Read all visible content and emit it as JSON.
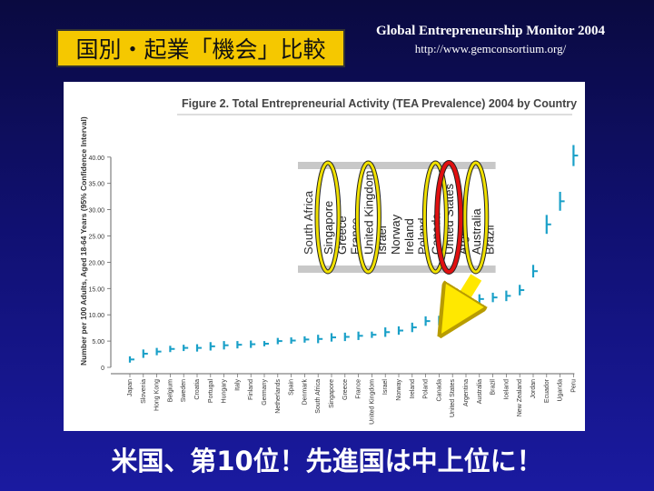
{
  "slide": {
    "title": "国別・起業「機会」比較",
    "source_line1": "Global Entrepreneurship Monitor 2004",
    "source_line2": "http://www.gemconsortium.org/",
    "conclusion": "米国、第10位！先進国は中上位に！"
  },
  "colors": {
    "background": "#101070",
    "title_box": "#f5c800",
    "series": "#1aa0c8",
    "highlight_yellow": "#f0e000",
    "highlight_red": "#e01010",
    "arrow": "#ffe800",
    "gray_band": "#c8c8c8"
  },
  "chart_data": {
    "type": "scatter",
    "title": "Figure 2. Total Entrepreneurial Activity (TEA Prevalence) 2004 by Country",
    "ylabel": "Number per 100 Adults, Aged 18-64 Years (95% Confidence Interval)",
    "ylim": [
      0,
      40
    ],
    "yticks": [
      "0",
      "5.00",
      "10.00",
      "15.00",
      "20.00",
      "25.00",
      "30.00",
      "35.00",
      "40.00"
    ],
    "grid": false,
    "categories": [
      "Japan",
      "Slovenia",
      "Hong Kong",
      "Belgium",
      "Sweden",
      "Croatia",
      "Portugal",
      "Hungary",
      "Italy",
      "Finland",
      "Germany",
      "Netherlands",
      "Spain",
      "Denmark",
      "South Africa",
      "Singapore",
      "Greece",
      "France",
      "United Kingdom",
      "Israel",
      "Norway",
      "Ireland",
      "Poland",
      "Canada",
      "United States",
      "Argentina",
      "Australia",
      "Brazil",
      "Iceland",
      "New Zealand",
      "Jordan",
      "Ecuador",
      "Uganda",
      "Peru"
    ],
    "values": [
      1.5,
      2.6,
      3.0,
      3.5,
      3.7,
      3.7,
      4.0,
      4.2,
      4.3,
      4.4,
      4.5,
      5.0,
      5.1,
      5.3,
      5.4,
      5.7,
      5.8,
      6.0,
      6.2,
      6.7,
      7.0,
      7.6,
      8.8,
      8.9,
      11.3,
      12.8,
      13.0,
      13.3,
      13.6,
      14.7,
      18.3,
      27.2,
      31.6,
      40.3
    ],
    "ci_half": [
      0.6,
      0.8,
      0.7,
      0.6,
      0.6,
      0.7,
      0.8,
      0.8,
      0.7,
      0.7,
      0.5,
      0.6,
      0.6,
      0.6,
      0.8,
      0.8,
      0.8,
      0.8,
      0.6,
      0.9,
      0.8,
      0.9,
      0.9,
      0.9,
      1.1,
      1.0,
      0.9,
      0.9,
      1.0,
      1.0,
      1.2,
      1.8,
      1.8,
      2.0
    ],
    "annotations": {
      "header_band_labels": [
        "Singapore",
        "Greece",
        "France",
        "United Kingdom",
        "Israel",
        "Norway",
        "Ireland",
        "Poland",
        "Canada",
        "United States",
        "Argentina",
        "Australia",
        "Brazil"
      ],
      "header_band_clipped": "South Africa",
      "yellow_circled": [
        "Singapore",
        "United Kingdom",
        "Canada",
        "Australia"
      ],
      "red_circled": [
        "United States"
      ],
      "arrow": "pointing from United States label to its data point"
    }
  }
}
